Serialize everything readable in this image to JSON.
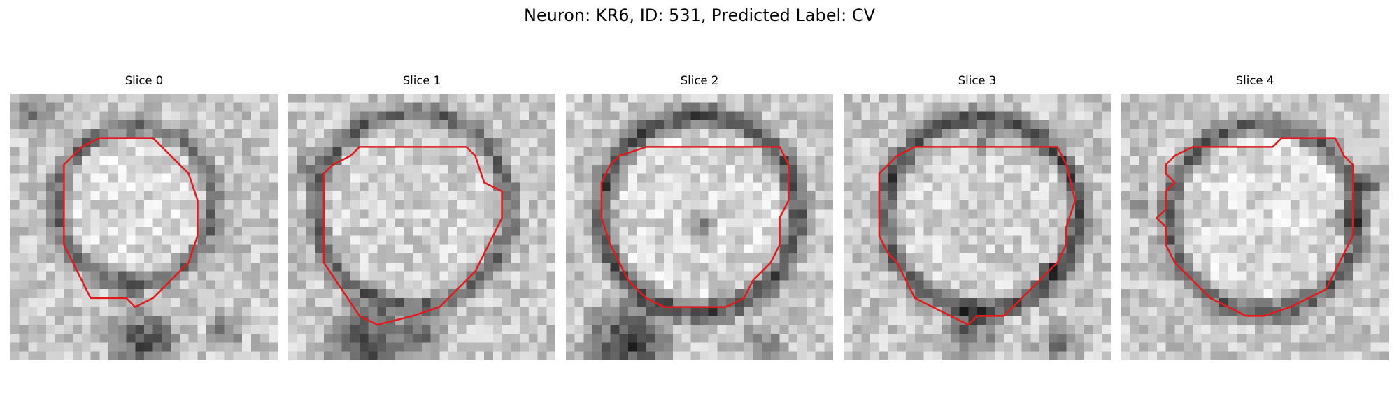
{
  "figure": {
    "title": "Neuron: KR6, ID: 531, Predicted Label: CV"
  },
  "panels": [
    {
      "title": "Slice 0"
    },
    {
      "title": "Slice 1"
    },
    {
      "title": "Slice 2"
    },
    {
      "title": "Slice 3"
    },
    {
      "title": "Slice 4"
    }
  ],
  "colors": {
    "contour": "#e31a1c",
    "background": "#ffffff"
  },
  "image": {
    "colormap": "grayscale",
    "grid_cells": 30
  }
}
